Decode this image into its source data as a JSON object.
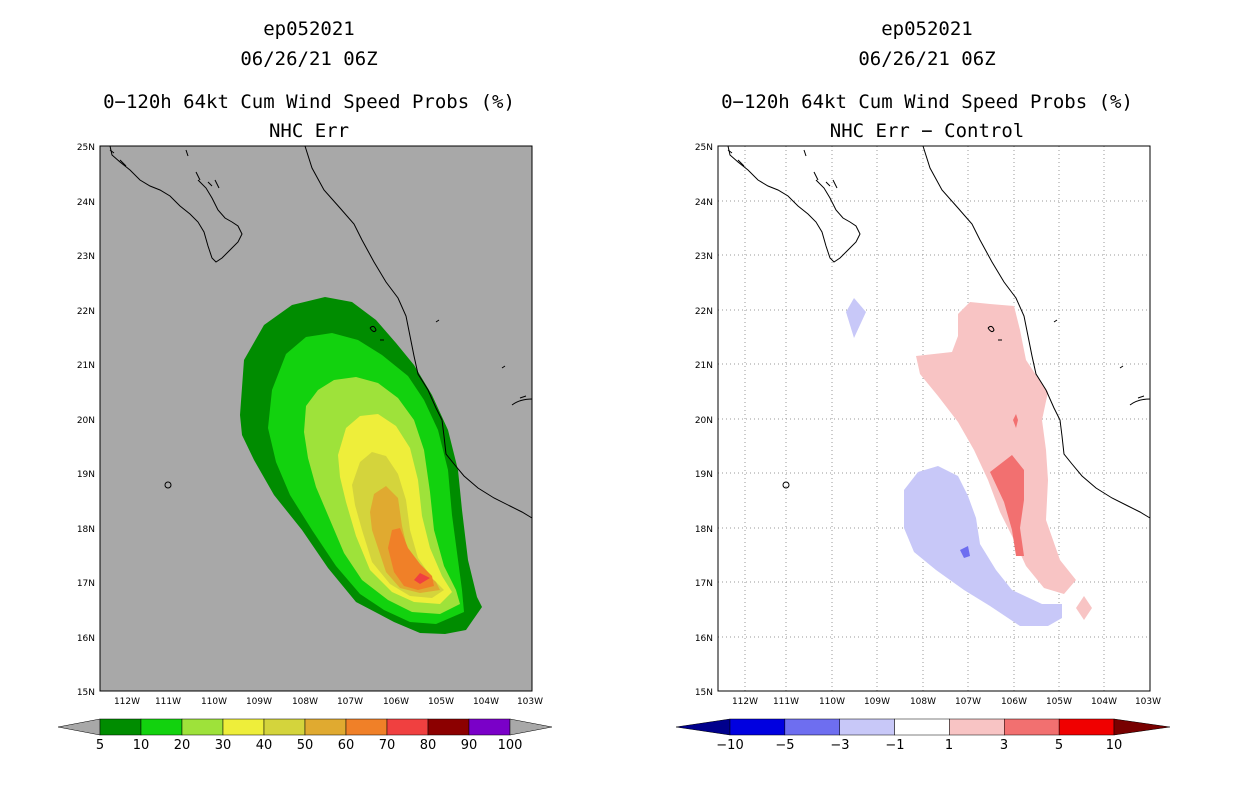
{
  "panels": [
    {
      "storm_id": "ep052021",
      "datetime": "06/26/21 06Z",
      "product": "0−120h 64kt Cum Wind Speed Probs (%)",
      "subtitle": "NHC Err",
      "map_background": "#a8a8a8",
      "grid": false,
      "colorbar": {
        "colors": [
          "#008c00",
          "#12d20e",
          "#9ee23a",
          "#eeee3a",
          "#d4d43c",
          "#e0aa30",
          "#f08028",
          "#f04040",
          "#8c0000",
          "#7a00c8"
        ],
        "labels": [
          "5",
          "10",
          "20",
          "30",
          "40",
          "50",
          "60",
          "70",
          "80",
          "90",
          "100"
        ],
        "left_arrow": "#a8a8a8",
        "right_arrow": "#a8a8a8"
      }
    },
    {
      "storm_id": "ep052021",
      "datetime": "06/26/21 06Z",
      "product": "0−120h 64kt Cum Wind Speed Probs (%)",
      "subtitle": "NHC Err − Control",
      "map_background": "#ffffff",
      "grid": true,
      "colorbar": {
        "colors": [
          "#0000e0",
          "#6e6ef0",
          "#c8c8f8",
          "#ffffff",
          "#f8c4c4",
          "#f27070",
          "#f00000"
        ],
        "labels": [
          "−10",
          "−5",
          "−3",
          "−1",
          "1",
          "3",
          "5",
          "10"
        ],
        "left_arrow": "#00008c",
        "right_arrow": "#780000"
      }
    }
  ],
  "axes": {
    "lat_labels": [
      "25N",
      "24N",
      "23N",
      "22N",
      "21N",
      "20N",
      "19N",
      "18N",
      "17N",
      "16N",
      "15N"
    ],
    "lon_labels": [
      "112W",
      "111W",
      "110W",
      "109W",
      "108W",
      "107W",
      "106W",
      "105W",
      "104W",
      "103W"
    ]
  },
  "map_extent": {
    "lon_west": -112.5,
    "lon_east": -103,
    "lat_south": 15,
    "lat_north": 25
  }
}
